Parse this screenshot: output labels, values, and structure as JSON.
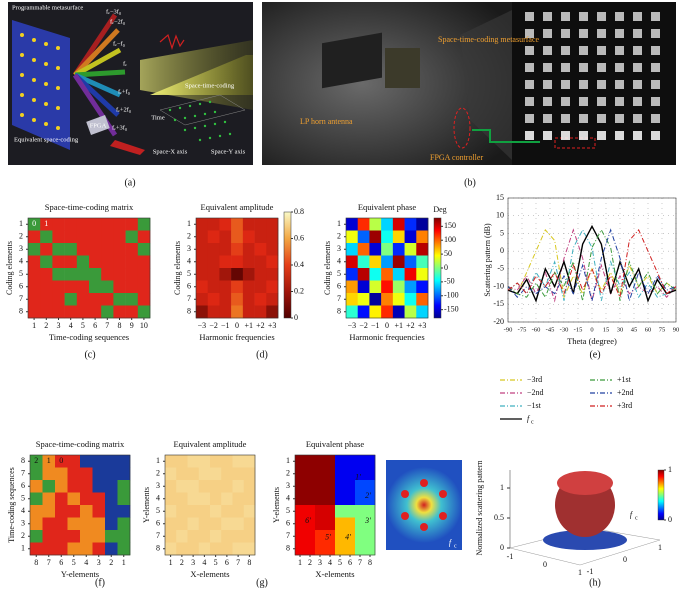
{
  "panel_labels": [
    "(a)",
    "(b)",
    "(c)",
    "(d)",
    "(e)",
    "(f)",
    "(g)",
    "(h)"
  ],
  "photo_a": {
    "labels": [
      "Programmable metasurface",
      "fₑ−3f₀",
      "fₑ−2f₀",
      "fₑ−f₀",
      "fₑ",
      "fₑ+f₀",
      "fₑ+2f₀",
      "fₑ+3f₀",
      "Space-time-coding",
      "Equivalent space-coding",
      "FPGA",
      "Time",
      "Space-X axis",
      "Space-Y axis"
    ]
  },
  "photo_b": {
    "labels": [
      "Space-time-coding metasurface",
      "LP horn antenna",
      "FPGA controller"
    ]
  },
  "panels": {
    "c": {
      "title": "Space-time-coding matrix",
      "ylabel": "Coding elements",
      "xlabel": "Time-coding sequences",
      "colors": [
        "#3a9a3a",
        "#e0261b"
      ],
      "xticks": [
        1,
        2,
        3,
        4,
        5,
        6,
        7,
        8,
        9,
        10
      ],
      "yticks": [
        1,
        2,
        3,
        4,
        5,
        6,
        7,
        8
      ],
      "matrix": [
        [
          0,
          1,
          1,
          1,
          1,
          1,
          1,
          1,
          1,
          0
        ],
        [
          1,
          0,
          1,
          1,
          1,
          1,
          1,
          1,
          0,
          1
        ],
        [
          0,
          1,
          0,
          0,
          1,
          1,
          1,
          1,
          1,
          0
        ],
        [
          1,
          0,
          1,
          1,
          0,
          1,
          1,
          1,
          1,
          1
        ],
        [
          1,
          1,
          0,
          0,
          0,
          0,
          1,
          1,
          1,
          1
        ],
        [
          1,
          1,
          1,
          1,
          1,
          0,
          0,
          1,
          1,
          1
        ],
        [
          1,
          1,
          1,
          0,
          1,
          1,
          1,
          0,
          0,
          1
        ],
        [
          1,
          1,
          1,
          1,
          1,
          1,
          0,
          1,
          1,
          0
        ]
      ]
    },
    "d_amp": {
      "title": "Equivalent amplitude",
      "ylabel": "Coding elements",
      "xlabel": "Harmonic frequencies",
      "categories": [
        "−3",
        "−2",
        "−1",
        "0",
        "+1",
        "+2",
        "+3"
      ],
      "yticks": [
        1,
        2,
        3,
        4,
        5,
        6,
        7,
        8
      ],
      "clim": [
        0,
        0.8
      ],
      "cticks": [
        0,
        0.2,
        0.4,
        0.6,
        0.8
      ],
      "matrix": [
        [
          0.3,
          0.3,
          0.35,
          0.45,
          0.3,
          0.3,
          0.3
        ],
        [
          0.3,
          0.35,
          0.3,
          0.45,
          0.35,
          0.3,
          0.3
        ],
        [
          0.3,
          0.3,
          0.3,
          0.4,
          0.3,
          0.35,
          0.3
        ],
        [
          0.3,
          0.3,
          0.35,
          0.35,
          0.3,
          0.3,
          0.35
        ],
        [
          0.3,
          0.3,
          0.2,
          0.05,
          0.2,
          0.3,
          0.3
        ],
        [
          0.35,
          0.3,
          0.3,
          0.4,
          0.3,
          0.3,
          0.35
        ],
        [
          0.3,
          0.35,
          0.3,
          0.45,
          0.3,
          0.35,
          0.3
        ],
        [
          0.15,
          0.3,
          0.3,
          0.5,
          0.3,
          0.3,
          0.15
        ]
      ]
    },
    "d_phase": {
      "title": "Equivalent phase",
      "ylabel": "Coding elements",
      "xlabel": "Harmonic frequencies",
      "unit": "Deg",
      "categories": [
        "−3",
        "−2",
        "−1",
        "0",
        "+1",
        "+2",
        "+3"
      ],
      "yticks": [
        1,
        2,
        3,
        4,
        5,
        6,
        7,
        8
      ],
      "clim": [
        -180,
        180
      ],
      "cticks": [
        150,
        100,
        50,
        0,
        -50,
        -100,
        -150
      ],
      "matrix": [
        [
          -150,
          120,
          20,
          -60,
          150,
          -120,
          -170
        ],
        [
          40,
          -100,
          170,
          -40,
          60,
          -150,
          90
        ],
        [
          -60,
          100,
          -150,
          0,
          -120,
          30,
          160
        ],
        [
          150,
          -30,
          60,
          -80,
          170,
          -100,
          -20
        ],
        [
          -120,
          160,
          -40,
          100,
          -60,
          140,
          40
        ],
        [
          80,
          -150,
          30,
          130,
          10,
          -80,
          -130
        ],
        [
          60,
          40,
          -170,
          90,
          40,
          -40,
          100
        ],
        [
          -30,
          -130,
          50,
          120,
          -160,
          20,
          -60
        ]
      ]
    },
    "e": {
      "type": "line",
      "ylabel": "Scattering pattern (dB)",
      "xlabel": "Theta (degree)",
      "grid": true,
      "x": [
        -90,
        -80,
        -70,
        -60,
        -50,
        -40,
        -30,
        -20,
        -10,
        0,
        10,
        20,
        30,
        40,
        50,
        60,
        70,
        80,
        90
      ],
      "xlim": [
        -90,
        90
      ],
      "xticks": [
        -90,
        -75,
        -60,
        -45,
        -30,
        -15,
        0,
        15,
        30,
        45,
        60,
        75,
        90
      ],
      "ylim": [
        -20,
        15
      ],
      "yticks": [
        -20,
        -15,
        -10,
        -5,
        0,
        5,
        10,
        15
      ],
      "series": [
        {
          "name": "−3rd",
          "color": "#d8c820",
          "dash": "5 2 1 2",
          "values": [
            -10,
            -12,
            -6,
            0,
            6,
            3,
            -13,
            -7,
            -12,
            -5,
            -11,
            -6,
            -12,
            -4,
            -10,
            -7,
            -12,
            -9,
            -11
          ]
        },
        {
          "name": "−2nd",
          "color": "#c04080",
          "dash": "5 2 1 2",
          "values": [
            -10,
            -11,
            -7,
            -12,
            -6,
            -14,
            -2,
            6,
            -2,
            -14,
            -4,
            -12,
            -7,
            -12,
            -10,
            -12,
            -10,
            -13,
            -10
          ]
        },
        {
          "name": "−1st",
          "color": "#40b0c0",
          "dash": "5 2 1 2",
          "values": [
            -11,
            -9,
            -12,
            -6,
            -10,
            -3,
            -14,
            1,
            6,
            1,
            -14,
            -3,
            -10,
            -6,
            -13,
            -9,
            -13,
            -12,
            -10
          ]
        },
        {
          "name": "f",
          "sub": "c",
          "color": "#000000",
          "dash": "",
          "values": [
            -11,
            -12,
            -8,
            -14,
            -5,
            -10,
            -3,
            -12,
            2,
            7,
            2,
            -12,
            -3,
            -10,
            -5,
            -14,
            -8,
            -12,
            -11
          ]
        },
        {
          "name": "+1st",
          "color": "#3a9a3a",
          "dash": "5 2 1 2",
          "values": [
            -10,
            -12,
            -13,
            -9,
            -13,
            -6,
            -10,
            -3,
            -14,
            1,
            6,
            1,
            -14,
            -3,
            -10,
            -6,
            -12,
            -9,
            -11
          ]
        },
        {
          "name": "+2nd",
          "color": "#2040a0",
          "dash": "5 2 1 2",
          "values": [
            -10,
            -13,
            -10,
            -12,
            -10,
            -12,
            -7,
            -12,
            -4,
            -14,
            -2,
            6,
            -2,
            -14,
            -6,
            -12,
            -7,
            -11,
            -10
          ]
        },
        {
          "name": "+3rd",
          "color": "#d02020",
          "dash": "5 2 1 2",
          "values": [
            -11,
            -9,
            -12,
            -7,
            -10,
            -6,
            -12,
            -4,
            -11,
            -5,
            -12,
            -7,
            -13,
            3,
            6,
            0,
            -6,
            -12,
            -10
          ]
        }
      ]
    },
    "f": {
      "title": "Space-time-coding matrix",
      "ylabel": "Time-coding sequences",
      "xlabel": "Y-elements",
      "colors": [
        "#e0261b",
        "#f08a20",
        "#3a9a3a",
        "#1a3a9a"
      ],
      "xticks": [
        8,
        7,
        6,
        5,
        4,
        3,
        2,
        1
      ],
      "yticks": [
        8,
        7,
        6,
        5,
        4,
        3,
        2,
        1
      ],
      "matrix": [
        [
          2,
          1,
          0,
          0,
          3,
          3,
          3,
          3
        ],
        [
          2,
          1,
          1,
          0,
          0,
          3,
          3,
          3
        ],
        [
          1,
          2,
          1,
          0,
          0,
          3,
          3,
          2
        ],
        [
          2,
          1,
          0,
          1,
          0,
          0,
          3,
          2
        ],
        [
          1,
          1,
          0,
          0,
          1,
          0,
          3,
          3
        ],
        [
          1,
          0,
          0,
          1,
          1,
          1,
          3,
          2
        ],
        [
          2,
          0,
          0,
          0,
          1,
          1,
          2,
          2
        ],
        [
          0,
          0,
          0,
          1,
          1,
          0,
          3,
          2
        ]
      ]
    },
    "g_amp": {
      "title": "Equivalent amplitude",
      "ylabel": "Y-elements",
      "xlabel": "X-elements",
      "xticks": [
        1,
        2,
        3,
        4,
        5,
        6,
        7,
        8
      ],
      "yticks": [
        1,
        2,
        3,
        4,
        5,
        6,
        7,
        8
      ],
      "clim": [
        0,
        0.8
      ],
      "matrix": [
        [
          0.7,
          0.7,
          0.72,
          0.72,
          0.7,
          0.7,
          0.72,
          0.72
        ],
        [
          0.72,
          0.7,
          0.7,
          0.72,
          0.72,
          0.7,
          0.7,
          0.7
        ],
        [
          0.7,
          0.72,
          0.72,
          0.7,
          0.7,
          0.7,
          0.72,
          0.7
        ],
        [
          0.7,
          0.7,
          0.72,
          0.72,
          0.7,
          0.72,
          0.7,
          0.7
        ],
        [
          0.72,
          0.7,
          0.7,
          0.7,
          0.72,
          0.7,
          0.7,
          0.72
        ],
        [
          0.7,
          0.7,
          0.72,
          0.7,
          0.7,
          0.72,
          0.72,
          0.7
        ],
        [
          0.7,
          0.72,
          0.7,
          0.7,
          0.72,
          0.7,
          0.7,
          0.7
        ],
        [
          0.72,
          0.7,
          0.7,
          0.72,
          0.7,
          0.7,
          0.72,
          0.72
        ]
      ]
    },
    "g_phase": {
      "title": "Equivalent phase",
      "ylabel": "Y-elements",
      "xlabel": "X-elements",
      "xticks": [
        1,
        2,
        3,
        4,
        5,
        6,
        7,
        8
      ],
      "yticks": [
        1,
        2,
        3,
        4,
        5,
        6,
        7,
        8
      ],
      "clim": [
        -180,
        180
      ],
      "regions": [
        "1′",
        "2′",
        "3′",
        "4′",
        "5′",
        "6′"
      ],
      "matrix": [
        [
          175,
          175,
          175,
          175,
          -140,
          -140,
          -140,
          -140
        ],
        [
          175,
          175,
          175,
          175,
          -140,
          -140,
          -140,
          -140
        ],
        [
          175,
          175,
          175,
          175,
          -140,
          -140,
          -110,
          -110
        ],
        [
          175,
          175,
          175,
          175,
          -140,
          -140,
          -110,
          -110
        ],
        [
          140,
          140,
          150,
          150,
          0,
          0,
          0,
          0
        ],
        [
          140,
          140,
          150,
          150,
          70,
          70,
          0,
          0
        ],
        [
          140,
          140,
          120,
          120,
          70,
          70,
          0,
          0
        ],
        [
          140,
          140,
          120,
          120,
          70,
          70,
          0,
          0
        ]
      ]
    },
    "h": {
      "zlabel": "Normalized scattering pattern",
      "fc": "f",
      "fc_sub": "c",
      "zticks": [
        0,
        0.5,
        1
      ],
      "xticks": [
        -1,
        0,
        1
      ],
      "yticks": [
        -1,
        0,
        1
      ],
      "cticks": [
        0,
        1
      ]
    }
  }
}
